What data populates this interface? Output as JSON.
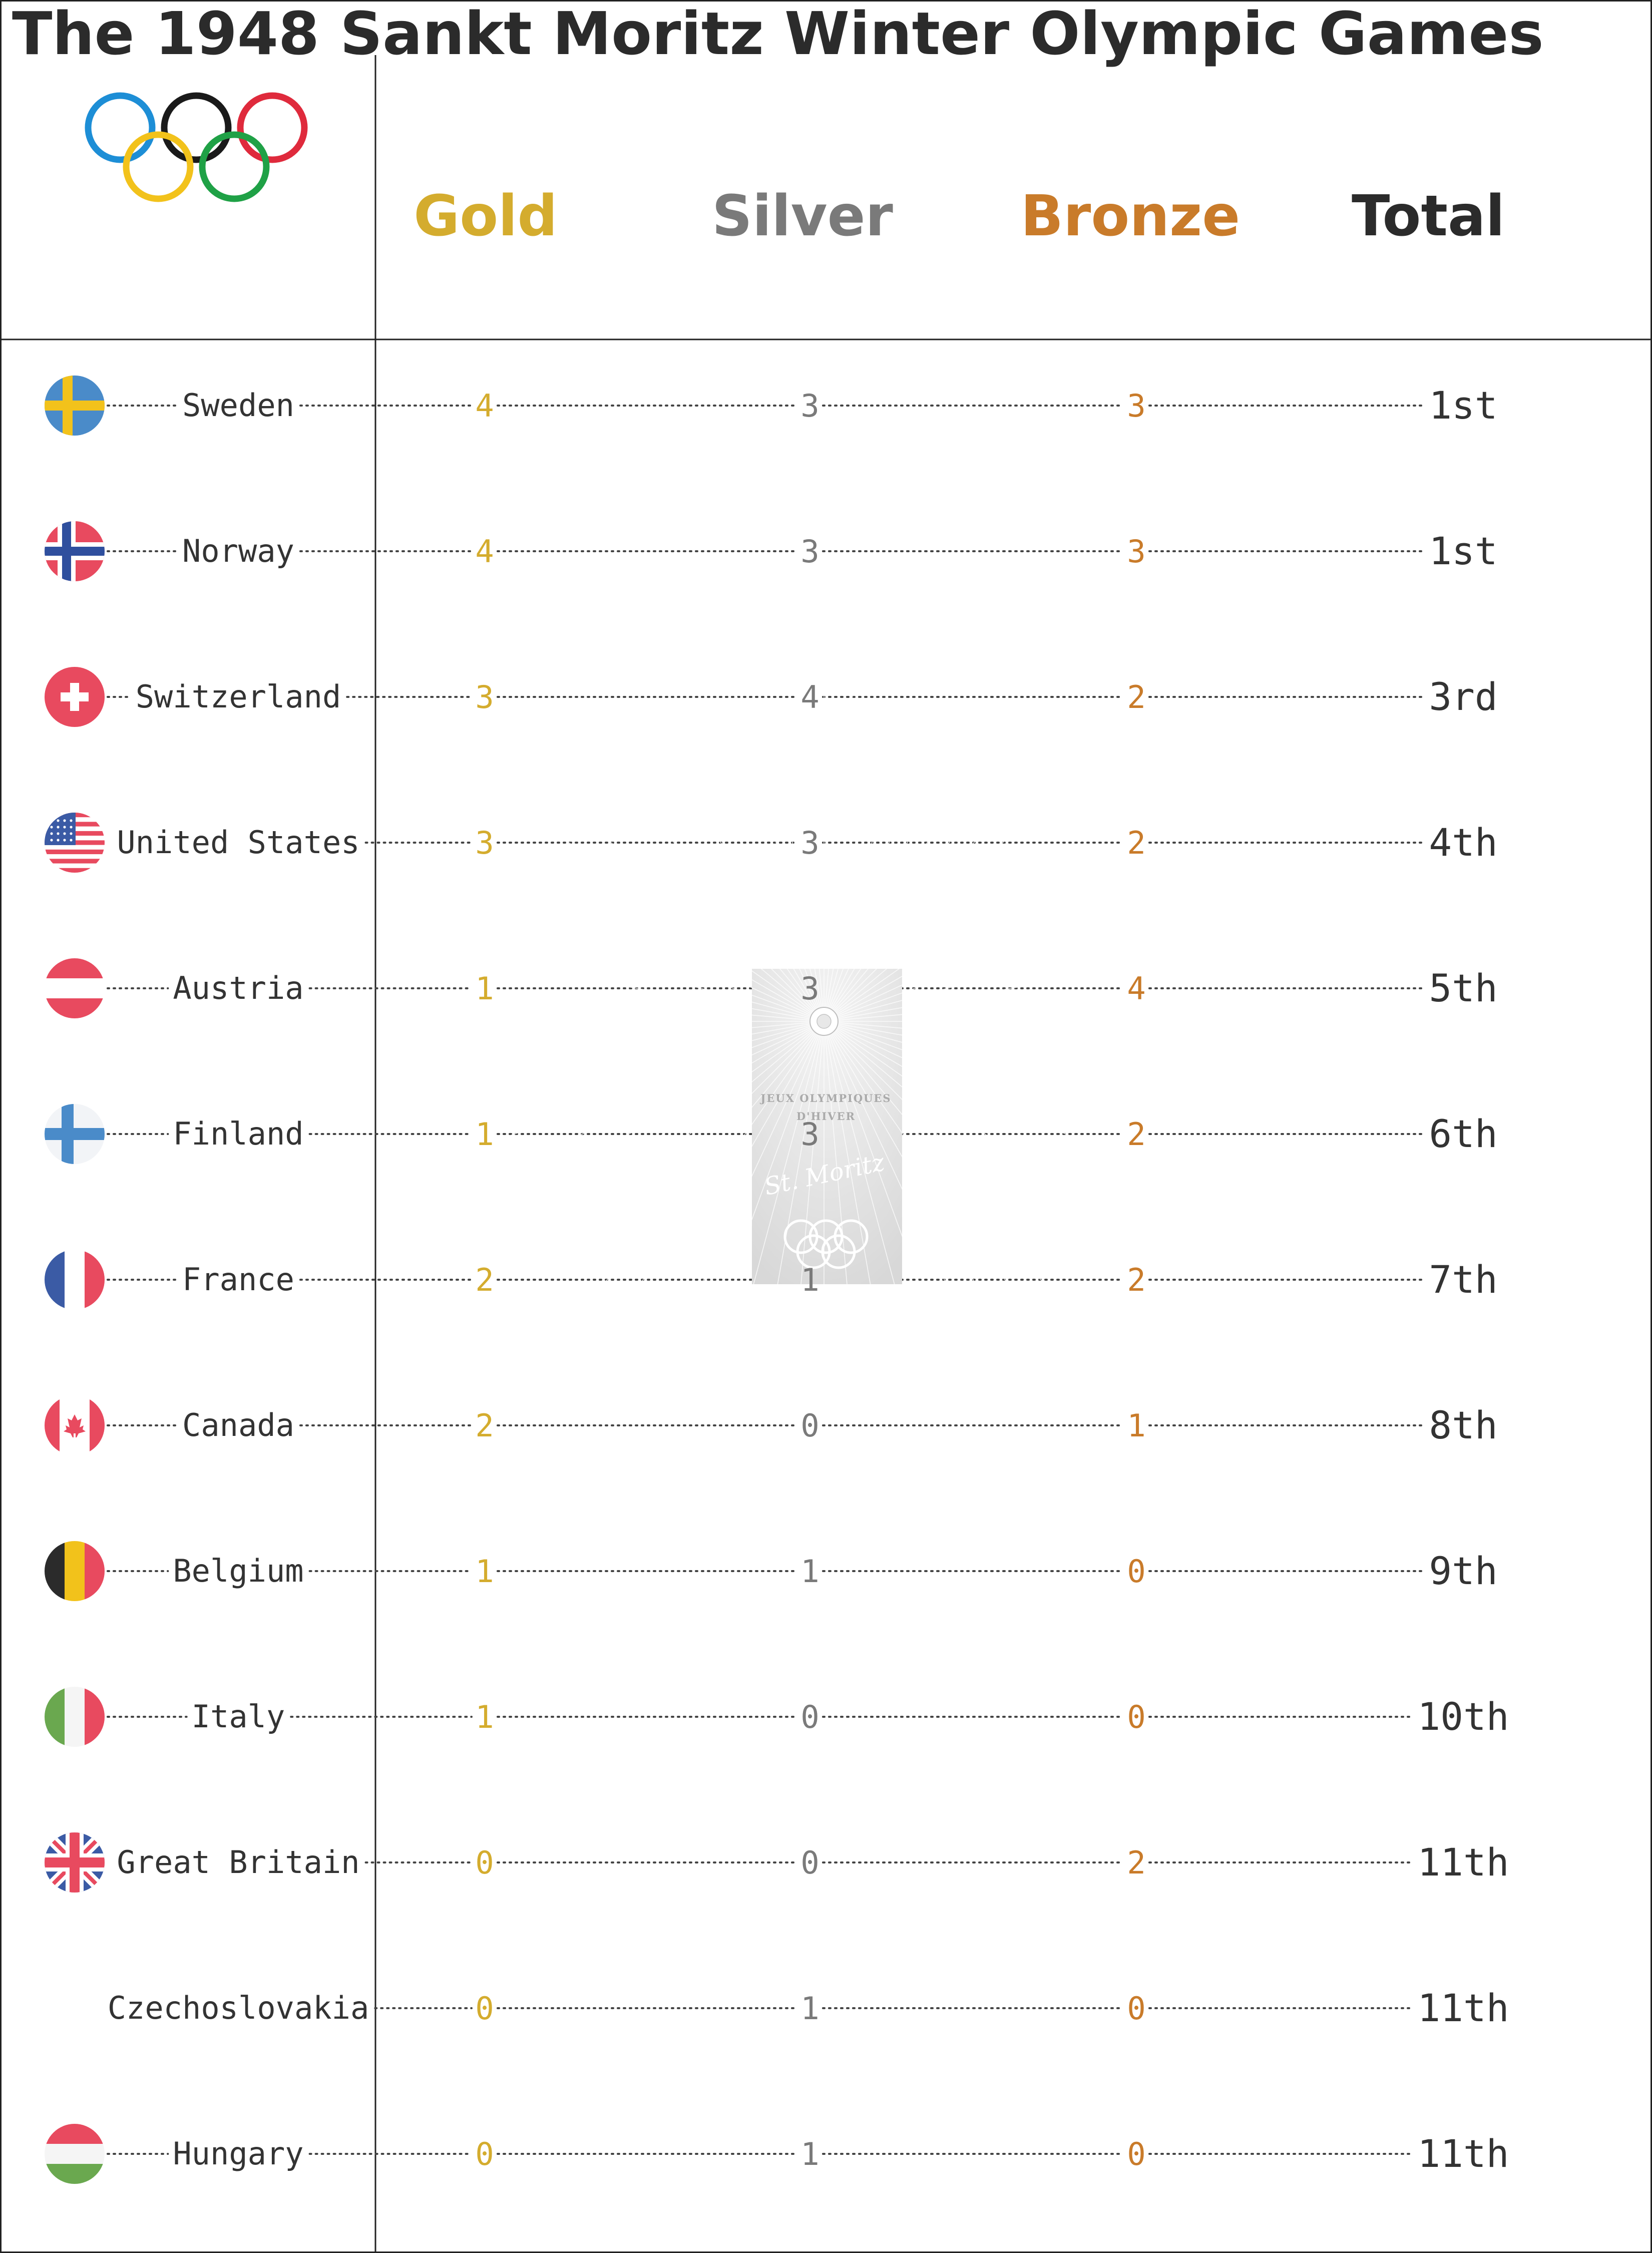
{
  "title": "The 1948 Sankt Moritz Winter Olympic Games",
  "colors": {
    "gold": "#d4ac2e",
    "silver": "#7a7a7a",
    "bronze": "#c97b2a",
    "total": "#2b2b2b",
    "ring_blue": "#1d8ed6",
    "ring_black": "#1a1a1a",
    "ring_red": "#df2a3c",
    "ring_yellow": "#f2c21b",
    "ring_green": "#1fa146"
  },
  "icons": {
    "logo": "olympic-rings-icon",
    "poster": "1948-st-moritz-poster-image"
  },
  "poster_text": {
    "line1": "JEUX OLYMPIQUES",
    "line2": "D'HIVER",
    "line3": "St. Moritz"
  },
  "chart_data": {
    "type": "table",
    "title": "The 1948 Sankt Moritz Winter Olympic Games",
    "columns": [
      "Gold",
      "Silver",
      "Bronze",
      "Total"
    ],
    "rows": [
      {
        "country": "Sweden",
        "flag": "sweden-flag-icon",
        "gold": 4,
        "silver": 3,
        "bronze": 3,
        "rank": "1st"
      },
      {
        "country": "Norway",
        "flag": "norway-flag-icon",
        "gold": 4,
        "silver": 3,
        "bronze": 3,
        "rank": "1st"
      },
      {
        "country": "Switzerland",
        "flag": "switzerland-flag-icon",
        "gold": 3,
        "silver": 4,
        "bronze": 2,
        "rank": "3rd"
      },
      {
        "country": "United States",
        "flag": "united-states-flag-icon",
        "gold": 3,
        "silver": 3,
        "bronze": 2,
        "rank": "4th"
      },
      {
        "country": "Austria",
        "flag": "austria-flag-icon",
        "gold": 1,
        "silver": 3,
        "bronze": 4,
        "rank": "5th"
      },
      {
        "country": "Finland",
        "flag": "finland-flag-icon",
        "gold": 1,
        "silver": 3,
        "bronze": 2,
        "rank": "6th"
      },
      {
        "country": "France",
        "flag": "france-flag-icon",
        "gold": 2,
        "silver": 1,
        "bronze": 2,
        "rank": "7th"
      },
      {
        "country": "Canada",
        "flag": "canada-flag-icon",
        "gold": 2,
        "silver": 0,
        "bronze": 1,
        "rank": "8th"
      },
      {
        "country": "Belgium",
        "flag": "belgium-flag-icon",
        "gold": 1,
        "silver": 1,
        "bronze": 0,
        "rank": "9th"
      },
      {
        "country": "Italy",
        "flag": "italy-flag-icon",
        "gold": 1,
        "silver": 0,
        "bronze": 0,
        "rank": "10th"
      },
      {
        "country": "Great Britain",
        "flag": "great-britain-flag-icon",
        "gold": 0,
        "silver": 0,
        "bronze": 2,
        "rank": "11th"
      },
      {
        "country": "Czechoslovakia",
        "flag": "",
        "gold": 0,
        "silver": 1,
        "bronze": 0,
        "rank": "11th"
      },
      {
        "country": "Hungary",
        "flag": "hungary-flag-icon",
        "gold": 0,
        "silver": 1,
        "bronze": 0,
        "rank": "11th"
      }
    ]
  }
}
